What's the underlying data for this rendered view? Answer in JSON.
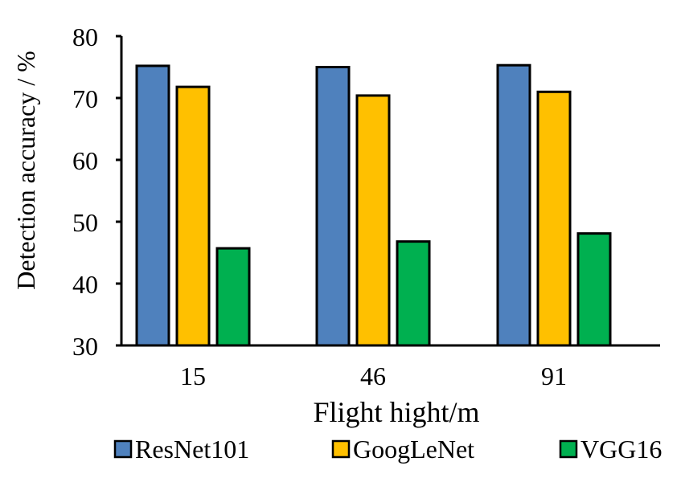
{
  "chart_data": {
    "type": "bar",
    "title": "",
    "categories": [
      "15",
      "46",
      "91"
    ],
    "series": [
      {
        "name": "ResNet101",
        "color": "#4F81BD",
        "values": [
          75.2,
          75.0,
          75.3
        ]
      },
      {
        "name": "GoogLeNet",
        "color": "#FFC000",
        "values": [
          71.8,
          70.4,
          71.0
        ]
      },
      {
        "name": "VGG16",
        "color": "#00B050",
        "values": [
          45.7,
          46.8,
          48.1
        ]
      }
    ],
    "xlabel": "Flight hight/m",
    "ylabel": "Detection accuracy / %",
    "ylim": [
      30,
      80
    ],
    "yticks": [
      "30",
      "40",
      "50",
      "60",
      "70",
      "80"
    ],
    "grid": false,
    "legend_position": "bottom"
  }
}
